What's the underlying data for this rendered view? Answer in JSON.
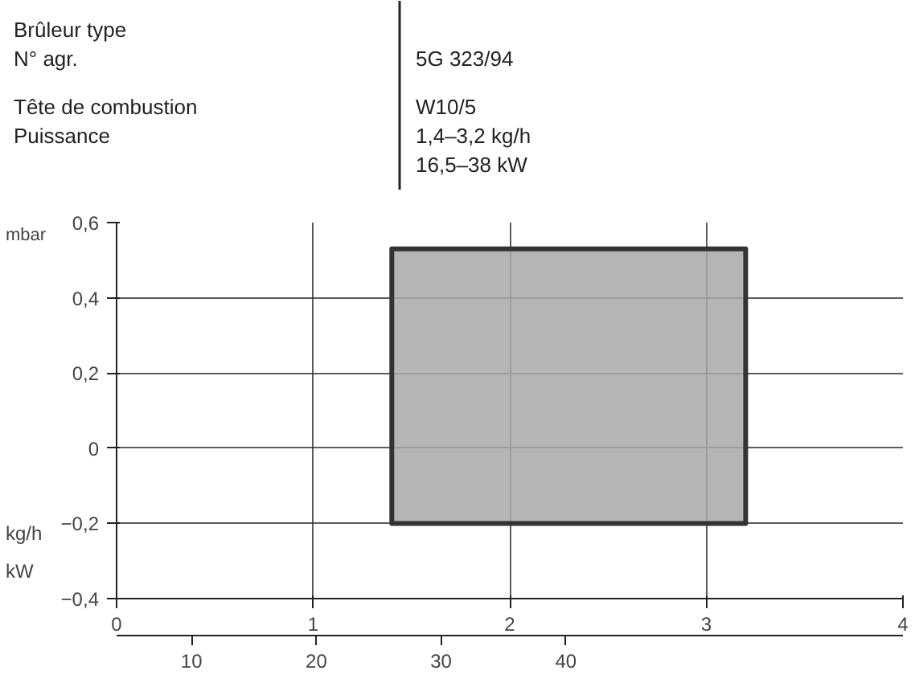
{
  "chart_data": {
    "annotations": [
      "Brûleur type",
      "N° agr.",
      "5G 323/94",
      "Tête de combustion",
      "W10/5",
      "Puissance",
      "1,4–3,2 kg/h",
      "16,5–38 kW"
    ],
    "ylabel": "mbar",
    "xlabel": "kg/h",
    "x2label": "kW",
    "type": "histogram",
    "bins": [
      1.4,
      3.2
    ],
    "values": [
      0.73
    ],
    "base": [
      -0.2
    ],
    "color": "#a8a8a8",
    "xlim": [
      0,
      4
    ],
    "xticks": [
      0,
      1,
      2,
      3,
      4
    ],
    "x2lim": [
      4,
      67
    ],
    "x2ticks": [
      10,
      20,
      30,
      40
    ],
    "ylim": [
      -0.4,
      0.6
    ],
    "yticks": [
      {
        "value": -0.4,
        "label": "−0,4"
      },
      {
        "value": -0.2,
        "label": "−0,2"
      },
      {
        "value": 0,
        "label": "0"
      },
      {
        "value": 0.2,
        "label": "0,2"
      },
      {
        "value": 0.4,
        "label": "0,4"
      },
      {
        "value": 0.6,
        "label": "0,6"
      }
    ],
    "grid": true
  }
}
